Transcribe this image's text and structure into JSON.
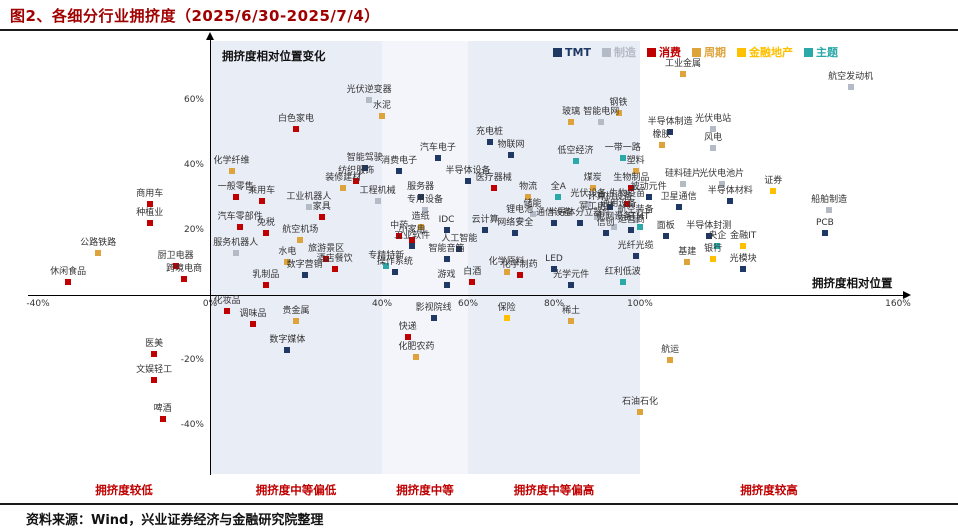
{
  "title": "图2、各细分行业拥挤度（2025/6/30-2025/7/4）",
  "source": "资料来源：Wind，兴业证券经济与金融研究院整理",
  "axis_labels": {
    "y_inner": "拥挤度相对位置变化",
    "x_inner": "拥挤度相对位置"
  },
  "legend": [
    "TMT",
    "制造",
    "消费",
    "周期",
    "金融地产",
    "主题"
  ],
  "colors": {
    "TMT": "#203864",
    "制造": "#b4bac6",
    "消费": "#c00000",
    "周期": "#dfa33c",
    "金融地产": "#ffc000",
    "主题": "#2ba8a8",
    "band_a": "#e9edf6",
    "band_b": "#f3f5fb",
    "accent_red": "#a00000",
    "zone_label_red": "#c00000"
  },
  "chart_data": {
    "type": "scatter",
    "title": "各细分行业拥挤度（2025/6/30-2025/7/4）",
    "xlabel": "拥挤度相对位置",
    "ylabel": "拥挤度相对位置变化",
    "xlim": [
      -40,
      160
    ],
    "ylim": [
      -55,
      78
    ],
    "x_ticks": [
      -40,
      0,
      40,
      60,
      80,
      100,
      160
    ],
    "y_ticks": [
      60,
      40,
      20,
      -20,
      -40
    ],
    "grid": false,
    "legend_position": "top-right",
    "zones": [
      {
        "label": "拥挤度较低",
        "from": -40,
        "to": 0,
        "band": null
      },
      {
        "label": "拥挤度中等偏低",
        "from": 0,
        "to": 40,
        "band": "band_a"
      },
      {
        "label": "拥挤度中等",
        "from": 40,
        "to": 60,
        "band": "band_b"
      },
      {
        "label": "拥挤度中等偏高",
        "from": 60,
        "to": 100,
        "band": "band_a"
      },
      {
        "label": "拥挤度较高",
        "from": 100,
        "to": 160,
        "band": null
      }
    ],
    "points": [
      {
        "label": "休闲食品",
        "x": -33,
        "y": 4,
        "cat": "消费"
      },
      {
        "label": "公路铁路",
        "x": -26,
        "y": 13,
        "cat": "周期"
      },
      {
        "label": "种植业",
        "x": -14,
        "y": 22,
        "cat": "消费"
      },
      {
        "label": "商用车",
        "x": -14,
        "y": 28,
        "cat": "消费"
      },
      {
        "label": "厨卫电器",
        "x": -8,
        "y": 9,
        "cat": "消费"
      },
      {
        "label": "跨境电商",
        "x": -6,
        "y": 5,
        "cat": "消费"
      },
      {
        "label": "医美",
        "x": -13,
        "y": -18,
        "cat": "消费"
      },
      {
        "label": "文娱轻工",
        "x": -13,
        "y": -26,
        "cat": "消费"
      },
      {
        "label": "啤酒",
        "x": -11,
        "y": -38,
        "cat": "消费"
      },
      {
        "label": "化妆品",
        "x": 4,
        "y": -5,
        "cat": "消费"
      },
      {
        "label": "调味品",
        "x": 10,
        "y": -9,
        "cat": "消费"
      },
      {
        "label": "贵金属",
        "x": 20,
        "y": -8,
        "cat": "周期"
      },
      {
        "label": "数字媒体",
        "x": 18,
        "y": -17,
        "cat": "TMT"
      },
      {
        "label": "一般零售",
        "x": 6,
        "y": 30,
        "cat": "消费"
      },
      {
        "label": "化学纤维",
        "x": 5,
        "y": 38,
        "cat": "周期"
      },
      {
        "label": "乘用车",
        "x": 12,
        "y": 29,
        "cat": "消费"
      },
      {
        "label": "汽车零部件",
        "x": 7,
        "y": 21,
        "cat": "消费"
      },
      {
        "label": "免税",
        "x": 13,
        "y": 19,
        "cat": "消费"
      },
      {
        "label": "服务机器人",
        "x": 6,
        "y": 13,
        "cat": "制造"
      },
      {
        "label": "水电",
        "x": 18,
        "y": 10,
        "cat": "周期"
      },
      {
        "label": "乳制品",
        "x": 13,
        "y": 3,
        "cat": "消费"
      },
      {
        "label": "数字营销",
        "x": 22,
        "y": 6,
        "cat": "TMT"
      },
      {
        "label": "白色家电",
        "x": 20,
        "y": 51,
        "cat": "消费"
      },
      {
        "label": "工业机器人",
        "x": 23,
        "y": 27,
        "cat": "制造"
      },
      {
        "label": "航空机场",
        "x": 21,
        "y": 17,
        "cat": "周期"
      },
      {
        "label": "家具",
        "x": 26,
        "y": 24,
        "cat": "消费"
      },
      {
        "label": "旅游景区",
        "x": 27,
        "y": 11,
        "cat": "消费"
      },
      {
        "label": "酒店餐饮",
        "x": 29,
        "y": 8,
        "cat": "消费"
      },
      {
        "label": "装修建材",
        "x": 31,
        "y": 33,
        "cat": "周期"
      },
      {
        "label": "纺织服饰",
        "x": 34,
        "y": 35,
        "cat": "消费"
      },
      {
        "label": "智能驾驶",
        "x": 36,
        "y": 39,
        "cat": "TMT"
      },
      {
        "label": "光伏逆变器",
        "x": 37,
        "y": 60,
        "cat": "制造"
      },
      {
        "label": "水泥",
        "x": 40,
        "y": 55,
        "cat": "周期"
      },
      {
        "label": "工程机械",
        "x": 39,
        "y": 29,
        "cat": "制造"
      },
      {
        "label": "专精特新",
        "x": 41,
        "y": 9,
        "cat": "主题"
      },
      {
        "label": "操作系统",
        "x": 43,
        "y": 7,
        "cat": "TMT"
      },
      {
        "label": "中药",
        "x": 44,
        "y": 18,
        "cat": "消费"
      },
      {
        "label": "消费电子",
        "x": 44,
        "y": 38,
        "cat": "TMT"
      },
      {
        "label": "快递",
        "x": 46,
        "y": -13,
        "cat": "消费"
      },
      {
        "label": "化肥农药",
        "x": 48,
        "y": -19,
        "cat": "周期"
      },
      {
        "label": "小家电",
        "x": 47,
        "y": 17,
        "cat": "消费"
      },
      {
        "label": "工业软件",
        "x": 47,
        "y": 15,
        "cat": "TMT"
      },
      {
        "label": "服务器",
        "x": 49,
        "y": 30,
        "cat": "TMT"
      },
      {
        "label": "造纸",
        "x": 49,
        "y": 21,
        "cat": "周期"
      },
      {
        "label": "专用设备",
        "x": 50,
        "y": 26,
        "cat": "制造"
      },
      {
        "label": "影视院线",
        "x": 52,
        "y": -7,
        "cat": "TMT"
      },
      {
        "label": "汽车电子",
        "x": 53,
        "y": 42,
        "cat": "TMT"
      },
      {
        "label": "游戏",
        "x": 55,
        "y": 3,
        "cat": "TMT"
      },
      {
        "label": "IDC",
        "x": 55,
        "y": 20,
        "cat": "TMT"
      },
      {
        "label": "智能音箱",
        "x": 55,
        "y": 11,
        "cat": "TMT"
      },
      {
        "label": "人工智能",
        "x": 58,
        "y": 14,
        "cat": "TMT"
      },
      {
        "label": "半导体设备",
        "x": 60,
        "y": 35,
        "cat": "TMT"
      },
      {
        "label": "白酒",
        "x": 61,
        "y": 4,
        "cat": "消费"
      },
      {
        "label": "云计算",
        "x": 64,
        "y": 20,
        "cat": "TMT"
      },
      {
        "label": "充电桩",
        "x": 65,
        "y": 47,
        "cat": "TMT"
      },
      {
        "label": "医疗器械",
        "x": 66,
        "y": 33,
        "cat": "消费"
      },
      {
        "label": "化学原料",
        "x": 69,
        "y": 7,
        "cat": "周期"
      },
      {
        "label": "保险",
        "x": 69,
        "y": -7,
        "cat": "金融地产"
      },
      {
        "label": "物联网",
        "x": 70,
        "y": 43,
        "cat": "TMT"
      },
      {
        "label": "网络安全",
        "x": 71,
        "y": 19,
        "cat": "TMT"
      },
      {
        "label": "化学制药",
        "x": 72,
        "y": 6,
        "cat": "消费"
      },
      {
        "label": "锂电池",
        "x": 72,
        "y": 23,
        "cat": "制造"
      },
      {
        "label": "物流",
        "x": 74,
        "y": 30,
        "cat": "周期"
      },
      {
        "label": "储能",
        "x": 75,
        "y": 25,
        "cat": "制造"
      },
      {
        "label": "通信设备",
        "x": 80,
        "y": 22,
        "cat": "TMT"
      },
      {
        "label": "LED",
        "x": 80,
        "y": 8,
        "cat": "TMT"
      },
      {
        "label": "全A",
        "x": 81,
        "y": 30,
        "cat": "主题"
      },
      {
        "label": "光学元件",
        "x": 84,
        "y": 3,
        "cat": "TMT"
      },
      {
        "label": "稀土",
        "x": 84,
        "y": -8,
        "cat": "周期"
      },
      {
        "label": "玻璃",
        "x": 84,
        "y": 53,
        "cat": "周期"
      },
      {
        "label": "低空经济",
        "x": 85,
        "y": 41,
        "cat": "主题"
      },
      {
        "label": "半导体分立器件",
        "x": 86,
        "y": 22,
        "cat": "TMT"
      },
      {
        "label": "光伏设备",
        "x": 88,
        "y": 28,
        "cat": "制造"
      },
      {
        "label": "煤炭",
        "x": 89,
        "y": 33,
        "cat": "周期"
      },
      {
        "label": "军工电子",
        "x": 90,
        "y": 24,
        "cat": "制造"
      },
      {
        "label": "智能电网",
        "x": 91,
        "y": 53,
        "cat": "制造"
      },
      {
        "label": "信创",
        "x": 92,
        "y": 19,
        "cat": "TMT"
      },
      {
        "label": "计算机设备",
        "x": 93,
        "y": 27,
        "cat": "TMT"
      },
      {
        "label": "电网设备",
        "x": 94,
        "y": 21,
        "cat": "制造"
      },
      {
        "label": "钢铁",
        "x": 95,
        "y": 56,
        "cat": "周期"
      },
      {
        "label": "通用设备",
        "x": 95,
        "y": 25,
        "cat": "制造"
      },
      {
        "label": "一带一路",
        "x": 96,
        "y": 42,
        "cat": "主题"
      },
      {
        "label": "红利低波",
        "x": 96,
        "y": 4,
        "cat": "主题"
      },
      {
        "label": "生物疫苗",
        "x": 97,
        "y": 28,
        "cat": "消费"
      },
      {
        "label": "生物制品",
        "x": 98,
        "y": 33,
        "cat": "消费"
      },
      {
        "label": "运营商",
        "x": 98,
        "y": 20,
        "cat": "TMT"
      },
      {
        "label": "塑料",
        "x": 99,
        "y": 38,
        "cat": "周期"
      },
      {
        "label": "航空装备",
        "x": 99,
        "y": 23,
        "cat": "制造"
      },
      {
        "label": "光纤光缆",
        "x": 99,
        "y": 12,
        "cat": "TMT"
      },
      {
        "label": "TMT",
        "x": 100,
        "y": 21,
        "cat": "主题"
      },
      {
        "label": "石油石化",
        "x": 100,
        "y": -36,
        "cat": "周期"
      },
      {
        "label": "被动元件",
        "x": 102,
        "y": 30,
        "cat": "TMT"
      },
      {
        "label": "橡胶",
        "x": 105,
        "y": 46,
        "cat": "周期"
      },
      {
        "label": "面板",
        "x": 106,
        "y": 18,
        "cat": "TMT"
      },
      {
        "label": "半导体制造",
        "x": 107,
        "y": 50,
        "cat": "TMT"
      },
      {
        "label": "航运",
        "x": 107,
        "y": -20,
        "cat": "周期"
      },
      {
        "label": "卫星通信",
        "x": 109,
        "y": 27,
        "cat": "TMT"
      },
      {
        "label": "工业金属",
        "x": 110,
        "y": 68,
        "cat": "周期"
      },
      {
        "label": "硅料硅片",
        "x": 110,
        "y": 34,
        "cat": "制造"
      },
      {
        "label": "基建",
        "x": 111,
        "y": 10,
        "cat": "周期"
      },
      {
        "label": "半导体封测",
        "x": 116,
        "y": 18,
        "cat": "TMT"
      },
      {
        "label": "光伏电站",
        "x": 117,
        "y": 51,
        "cat": "制造"
      },
      {
        "label": "风电",
        "x": 117,
        "y": 45,
        "cat": "制造"
      },
      {
        "label": "银行",
        "x": 117,
        "y": 11,
        "cat": "金融地产"
      },
      {
        "label": "央企",
        "x": 118,
        "y": 15,
        "cat": "主题"
      },
      {
        "label": "光伏电池片",
        "x": 119,
        "y": 34,
        "cat": "制造"
      },
      {
        "label": "半导体材料",
        "x": 121,
        "y": 29,
        "cat": "TMT"
      },
      {
        "label": "金融IT",
        "x": 124,
        "y": 15,
        "cat": "金融地产"
      },
      {
        "label": "光模块",
        "x": 124,
        "y": 8,
        "cat": "TMT"
      },
      {
        "label": "证券",
        "x": 131,
        "y": 32,
        "cat": "金融地产"
      },
      {
        "label": "PCB",
        "x": 143,
        "y": 19,
        "cat": "TMT"
      },
      {
        "label": "船舶制造",
        "x": 144,
        "y": 26,
        "cat": "制造"
      },
      {
        "label": "航空发动机",
        "x": 149,
        "y": 64,
        "cat": "制造"
      }
    ]
  }
}
